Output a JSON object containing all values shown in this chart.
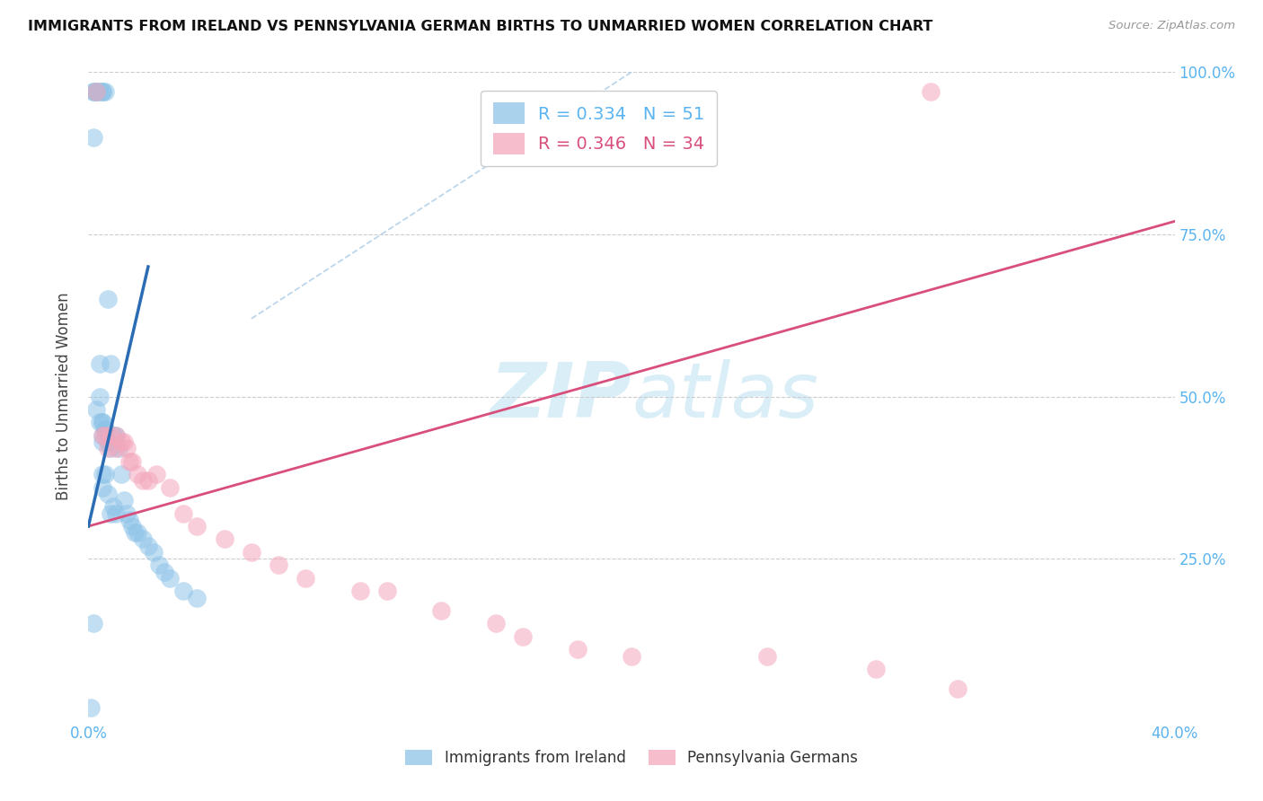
{
  "title": "IMMIGRANTS FROM IRELAND VS PENNSYLVANIA GERMAN BIRTHS TO UNMARRIED WOMEN CORRELATION CHART",
  "source": "Source: ZipAtlas.com",
  "xlabel_blue": "Immigrants from Ireland",
  "xlabel_pink": "Pennsylvania Germans",
  "ylabel": "Births to Unmarried Women",
  "r_blue": 0.334,
  "n_blue": 51,
  "r_pink": 0.346,
  "n_pink": 34,
  "xlim": [
    0.0,
    0.4
  ],
  "ylim": [
    0.0,
    1.0
  ],
  "color_blue": "#8ec4e8",
  "color_pink": "#f4a7bc",
  "color_blue_line": "#2a6db5",
  "color_pink_line": "#d94f7c",
  "color_axis_text": "#5ab4f0",
  "watermark_color": "#daeef8",
  "blue_line_x0": 0.0,
  "blue_line_y0": 0.3,
  "blue_line_x1": 0.022,
  "blue_line_y1": 0.7,
  "pink_line_x0": 0.0,
  "pink_line_y0": 0.3,
  "pink_line_x1": 0.4,
  "pink_line_y1": 0.77,
  "dash_line_x0": 0.06,
  "dash_line_y0": 0.62,
  "dash_line_x1": 0.2,
  "dash_line_y1": 1.0,
  "blue_scatter_x": [
    0.001,
    0.002,
    0.002,
    0.003,
    0.003,
    0.003,
    0.004,
    0.004,
    0.004,
    0.005,
    0.005,
    0.005,
    0.005,
    0.005,
    0.005,
    0.005,
    0.006,
    0.006,
    0.006,
    0.007,
    0.007,
    0.007,
    0.008,
    0.008,
    0.008,
    0.009,
    0.009,
    0.01,
    0.01,
    0.011,
    0.012,
    0.013,
    0.014,
    0.015,
    0.016,
    0.017,
    0.018,
    0.02,
    0.022,
    0.024,
    0.026,
    0.028,
    0.03,
    0.035,
    0.04,
    0.002,
    0.003,
    0.004,
    0.005,
    0.006,
    0.002
  ],
  "blue_scatter_y": [
    0.02,
    0.97,
    0.97,
    0.97,
    0.97,
    0.97,
    0.97,
    0.55,
    0.5,
    0.97,
    0.97,
    0.46,
    0.44,
    0.43,
    0.38,
    0.36,
    0.97,
    0.45,
    0.38,
    0.65,
    0.43,
    0.35,
    0.55,
    0.42,
    0.32,
    0.44,
    0.33,
    0.44,
    0.32,
    0.42,
    0.38,
    0.34,
    0.32,
    0.31,
    0.3,
    0.29,
    0.29,
    0.28,
    0.27,
    0.26,
    0.24,
    0.23,
    0.22,
    0.2,
    0.19,
    0.9,
    0.48,
    0.46,
    0.46,
    0.45,
    0.15
  ],
  "pink_scatter_x": [
    0.003,
    0.005,
    0.006,
    0.007,
    0.008,
    0.01,
    0.01,
    0.012,
    0.013,
    0.014,
    0.015,
    0.016,
    0.018,
    0.02,
    0.022,
    0.025,
    0.03,
    0.035,
    0.04,
    0.05,
    0.06,
    0.07,
    0.08,
    0.1,
    0.11,
    0.13,
    0.15,
    0.16,
    0.18,
    0.2,
    0.25,
    0.29,
    0.31,
    0.32
  ],
  "pink_scatter_y": [
    0.97,
    0.44,
    0.44,
    0.42,
    0.44,
    0.44,
    0.42,
    0.43,
    0.43,
    0.42,
    0.4,
    0.4,
    0.38,
    0.37,
    0.37,
    0.38,
    0.36,
    0.32,
    0.3,
    0.28,
    0.26,
    0.24,
    0.22,
    0.2,
    0.2,
    0.17,
    0.15,
    0.13,
    0.11,
    0.1,
    0.1,
    0.08,
    0.97,
    0.05
  ]
}
